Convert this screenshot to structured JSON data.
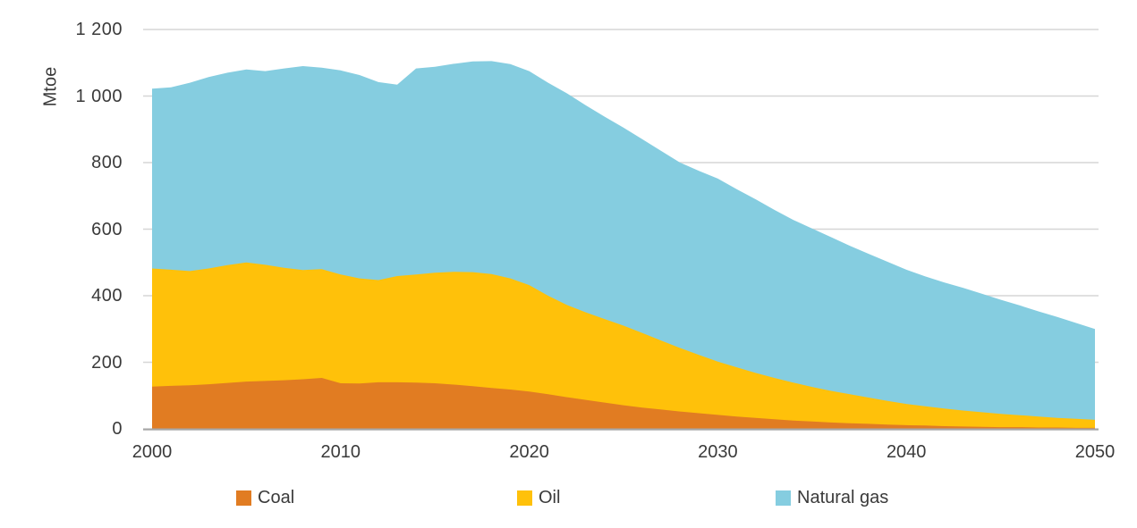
{
  "chart_data": {
    "type": "area",
    "stacked": true,
    "title": "",
    "xlabel": "",
    "ylabel": "Mtoe",
    "ylim": [
      0,
      1200
    ],
    "xlim": [
      2000,
      2050
    ],
    "grid": true,
    "legend_position": "bottom",
    "yticks": [
      0,
      200,
      400,
      600,
      800,
      1000,
      1200
    ],
    "ytick_labels": [
      "0",
      "200",
      "400",
      "600",
      "800",
      "1 000",
      "1 200"
    ],
    "xticks": [
      2000,
      2010,
      2020,
      2030,
      2040,
      2050
    ],
    "xtick_labels": [
      "2000",
      "2010",
      "2020",
      "2030",
      "2040",
      "2050"
    ],
    "x": [
      2000,
      2001,
      2002,
      2003,
      2004,
      2005,
      2006,
      2007,
      2008,
      2009,
      2010,
      2011,
      2012,
      2013,
      2014,
      2015,
      2016,
      2017,
      2018,
      2019,
      2020,
      2021,
      2022,
      2023,
      2024,
      2025,
      2026,
      2027,
      2028,
      2029,
      2030,
      2031,
      2032,
      2033,
      2034,
      2035,
      2036,
      2037,
      2038,
      2039,
      2040,
      2041,
      2042,
      2043,
      2044,
      2045,
      2046,
      2047,
      2048,
      2049,
      2050
    ],
    "series": [
      {
        "name": "Coal",
        "color": "#E17C22",
        "values": [
          127,
          129,
          131,
          134,
          138,
          142,
          144,
          146,
          149,
          153,
          137,
          136,
          140,
          140,
          139,
          137,
          133,
          128,
          123,
          118,
          112,
          104,
          95,
          87,
          79,
          71,
          64,
          58,
          52,
          47,
          42,
          37,
          33,
          29,
          25,
          22,
          19,
          17,
          15,
          13,
          11,
          10,
          8,
          7,
          6,
          5,
          5,
          4,
          4,
          3,
          3
        ]
      },
      {
        "name": "Oil",
        "color": "#FFC10A",
        "values": [
          355,
          349,
          343,
          348,
          354,
          358,
          349,
          338,
          328,
          327,
          327,
          316,
          307,
          319,
          325,
          332,
          339,
          343,
          342,
          334,
          320,
          296,
          277,
          263,
          251,
          239,
          224,
          207,
          191,
          175,
          160,
          148,
          135,
          124,
          114,
          104,
          95,
          87,
          79,
          71,
          64,
          58,
          53,
          48,
          44,
          40,
          36,
          33,
          29,
          27,
          24
        ]
      },
      {
        "name": "Natural gas",
        "color": "#85CDE0",
        "values": [
          540,
          548,
          566,
          575,
          578,
          580,
          582,
          599,
          613,
          605,
          613,
          611,
          595,
          575,
          619,
          619,
          625,
          633,
          640,
          644,
          643,
          640,
          636,
          622,
          608,
          595,
          582,
          570,
          557,
          553,
          550,
          535,
          522,
          505,
          489,
          476,
          462,
          446,
          432,
          418,
          403,
          390,
          379,
          369,
          356,
          343,
          330,
          316,
          303,
          288,
          273
        ]
      }
    ]
  },
  "colors": {
    "gridline": "#D6D6D6",
    "axis_line": "#A6A6A6",
    "text": "#3a3a3a"
  }
}
